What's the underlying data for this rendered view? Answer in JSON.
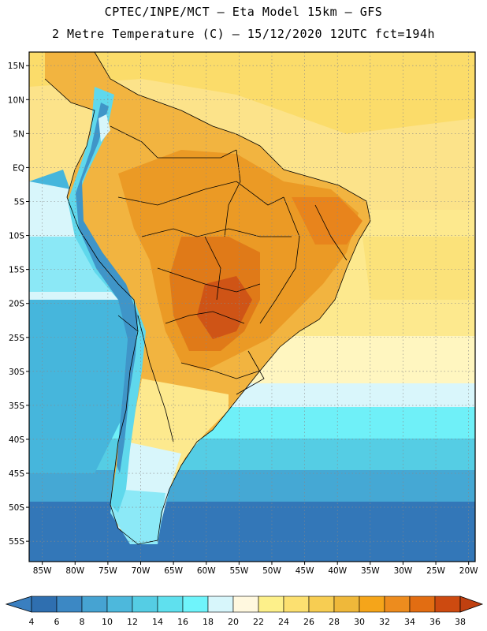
{
  "header": {
    "line1": "CPTEC/INPE/MCT –  Eta Model 15km – GFS",
    "line2": "2 Metre Temperature (C) – 15/12/2020 12UTC fct=194h"
  },
  "map": {
    "lat_labels": [
      "15N",
      "10N",
      "5N",
      "EQ",
      "5S",
      "10S",
      "15S",
      "20S",
      "25S",
      "30S",
      "35S",
      "40S",
      "45S",
      "50S",
      "55S"
    ],
    "lon_labels": [
      "85W",
      "80W",
      "75W",
      "70W",
      "65W",
      "60W",
      "55W",
      "50W",
      "45W",
      "40W",
      "35W",
      "30W",
      "25W",
      "20W"
    ],
    "extent": {
      "lon_min": -87,
      "lon_max": -19,
      "lat_min": -58,
      "lat_max": 17
    }
  },
  "colorbar": {
    "labels": [
      "4",
      "6",
      "8",
      "10",
      "12",
      "14",
      "16",
      "18",
      "20",
      "22",
      "24",
      "26",
      "28",
      "30",
      "32",
      "34",
      "36",
      "38"
    ],
    "colors": [
      "#2f6fb0",
      "#3c88c4",
      "#46a3d2",
      "#4db8dc",
      "#55cde4",
      "#5fe0ee",
      "#6ff4fb",
      "#d7f6fb",
      "#fff8df",
      "#fdf08a",
      "#fce070",
      "#f7cd52",
      "#efb83a",
      "#f5a51a",
      "#ed8c1e",
      "#e26d12",
      "#cd4a10",
      "#b8330a"
    ],
    "low_color": "#3a7fc0",
    "high_color": "#c04010"
  }
}
